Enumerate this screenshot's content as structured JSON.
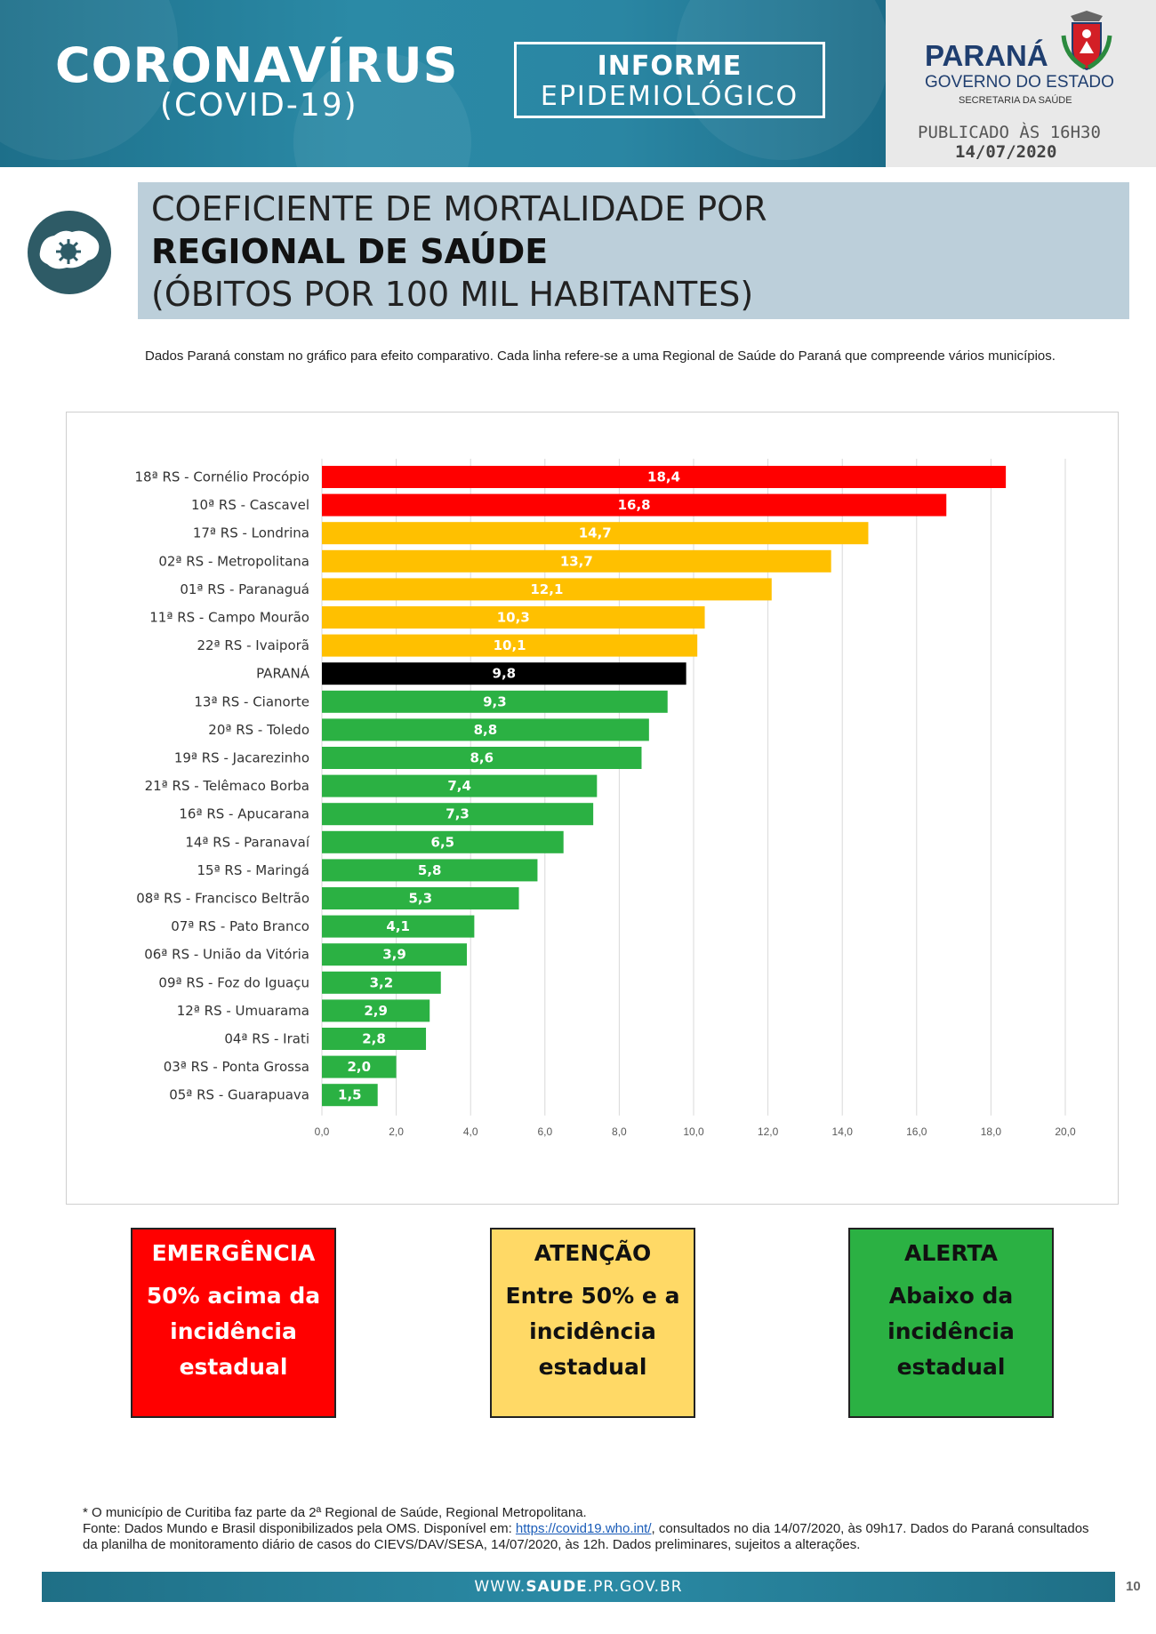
{
  "header": {
    "brand_title": "CORONAVÍRUS",
    "brand_sub": "(COVID-19)",
    "informe_line1": "INFORME",
    "informe_line2": "EPIDEMIOLÓGICO",
    "gov_name": "PARANÁ",
    "gov_line": "GOVERNO DO ESTADO",
    "gov_sec": "SECRETARIA DA SAÚDE",
    "published": "PUBLICADO ÀS 16H30",
    "date": "14/07/2020"
  },
  "title": {
    "line1": "COEFICIENTE DE MORTALIDADE POR",
    "line2": "REGIONAL DE SAÚDE",
    "line3": "(ÓBITOS POR 100 MIL HABITANTES)"
  },
  "note": "Dados Paraná constam no gráfico para efeito comparativo. Cada linha refere-se a uma Regional de Saúde do Paraná que compreende vários municípios.",
  "colors": {
    "emergencia": "#ff0000",
    "atencao": "#ffc000",
    "alerta": "#2bb143",
    "parana": "#000000"
  },
  "chart_data": {
    "type": "bar",
    "orientation": "horizontal",
    "categories": [
      "18ª RS - Cornélio Procópio",
      "10ª RS - Cascavel",
      "17ª RS - Londrina",
      "02ª RS - Metropolitana",
      "01ª RS - Paranaguá",
      "11ª RS - Campo Mourão",
      "22ª RS - Ivaiporã",
      "PARANÁ",
      "13ª RS - Cianorte",
      "20ª RS - Toledo",
      "19ª RS - Jacarezinho",
      "21ª RS - Telêmaco Borba",
      "16ª RS - Apucarana",
      "14ª RS - Paranavaí",
      "15ª RS - Maringá",
      "08ª RS - Francisco Beltrão",
      "07ª RS - Pato Branco",
      "06ª RS - União da Vitória",
      "09ª RS - Foz do Iguaçu",
      "12ª RS - Umuarama",
      "04ª RS - Irati",
      "03ª RS - Ponta Grossa",
      "05ª RS - Guarapuava"
    ],
    "values": [
      18.4,
      16.8,
      14.7,
      13.7,
      12.1,
      10.3,
      10.1,
      9.8,
      9.3,
      8.8,
      8.6,
      7.4,
      7.3,
      6.5,
      5.8,
      5.3,
      4.1,
      3.9,
      3.2,
      2.9,
      2.8,
      2.0,
      1.5
    ],
    "value_labels": [
      "18,4",
      "16,8",
      "14,7",
      "13,7",
      "12,1",
      "10,3",
      "10,1",
      "9,8",
      "9,3",
      "8,8",
      "8,6",
      "7,4",
      "7,3",
      "6,5",
      "5,8",
      "5,3",
      "4,1",
      "3,9",
      "3,2",
      "2,9",
      "2,8",
      "2,0",
      "1,5"
    ],
    "bar_colors": [
      "emergencia",
      "emergencia",
      "atencao",
      "atencao",
      "atencao",
      "atencao",
      "atencao",
      "parana",
      "alerta",
      "alerta",
      "alerta",
      "alerta",
      "alerta",
      "alerta",
      "alerta",
      "alerta",
      "alerta",
      "alerta",
      "alerta",
      "alerta",
      "alerta",
      "alerta",
      "alerta"
    ],
    "xlim": [
      0,
      20
    ],
    "x_ticks": [
      0,
      2,
      4,
      6,
      8,
      10,
      12,
      14,
      16,
      18,
      20
    ],
    "x_tick_labels": [
      "0,0",
      "2,0",
      "4,0",
      "6,0",
      "8,0",
      "10,0",
      "12,0",
      "14,0",
      "16,0",
      "18,0",
      "20,0"
    ],
    "grid": "vertical",
    "title": "",
    "xlabel": "",
    "ylabel": ""
  },
  "legend": {
    "emergencia": {
      "title": "EMERGÊNCIA",
      "desc": "50% acima da incidência estadual"
    },
    "atencao": {
      "title": "ATENÇÃO",
      "desc": "Entre 50% e a incidência estadual"
    },
    "alerta": {
      "title": "ALERTA",
      "desc": "Abaixo da incidência estadual"
    }
  },
  "footer": {
    "footnote_line1": "* O município de Curitiba faz parte da 2ª Regional de Saúde, Regional Metropolitana.",
    "footnote_pre": "Fonte: Dados Mundo e Brasil disponibilizados pela OMS. Disponível em: ",
    "footnote_link": "https://covid19.who.int/",
    "footnote_post": ", consultados no dia 14/07/2020, às 09h17. Dados do Paraná consultados da planilha de monitoramento diário de casos do CIEVS/DAV/SESA, 14/07/2020, às 12h. Dados preliminares, sujeitos a alterações.",
    "site_pre": "WWW.",
    "site_bold": "SAUDE",
    "site_post": ".PR.GOV.BR",
    "page_number": "10"
  }
}
